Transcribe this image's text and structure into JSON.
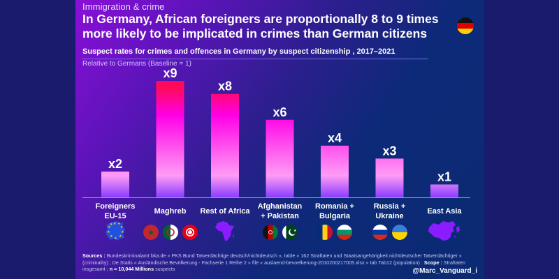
{
  "header": {
    "category": "Immigration & crime",
    "title": "In Germany, African foreigners are proportionally 8 to 9 times more likely to be implicated in crimes than German citizens",
    "flag_icon": "germany-flag-icon",
    "subtitle": "Suspect rates for crimes and offences in Germany by suspect citizenship , 2017–2021",
    "note": "Relative to Germans (Baseline = 1)"
  },
  "chart_data": {
    "type": "bar",
    "title": "Suspect rates for crimes and offences in Germany by suspect citizenship , 2017–2021",
    "subtitle": "Relative to Germans (Baseline = 1)",
    "xlabel": "",
    "ylabel": "",
    "ylim": [
      0,
      9.6
    ],
    "grid": false,
    "categories": [
      "Foreigners EU-15",
      "Maghreb",
      "Rest of Africa",
      "Afghanistan + Pakistan",
      "Romania + Bulgaria",
      "Russia + Ukraine",
      "East Asia"
    ],
    "category_lines": [
      [
        "Foreigners",
        "EU-15"
      ],
      [
        "Maghreb"
      ],
      [
        "Rest of Africa"
      ],
      [
        "Afghanistan",
        "+ Pakistan"
      ],
      [
        "Romania +",
        "Bulgaria"
      ],
      [
        "Russia +",
        "Ukraine"
      ],
      [
        "East Asia"
      ]
    ],
    "values": [
      2,
      9,
      8,
      6,
      4,
      3,
      1
    ],
    "data_labels": [
      "x2",
      "x9",
      "x8",
      "x6",
      "x4",
      "x3",
      "x1"
    ],
    "icons": [
      [
        "eu-map-icon"
      ],
      [
        "morocco-flag-icon",
        "algeria-flag-icon",
        "tunisia-flag-icon"
      ],
      [
        "africa-map-icon"
      ],
      [
        "afghanistan-flag-icon",
        "pakistan-flag-icon"
      ],
      [
        "romania-flag-icon",
        "bulgaria-flag-icon"
      ],
      [
        "russia-flag-icon",
        "ukraine-flag-icon"
      ],
      [
        "east-asia-map-icon"
      ]
    ],
    "colors": {
      "bar_top": "#ff0a5a",
      "bar_upper": "#ff00e6",
      "bar_mid": "#ff9cf5",
      "bar_bottom": "#8a3cff",
      "baseline": "#8fa0e6"
    }
  },
  "footer": {
    "sources_label": "Sources :",
    "sources_text": " Bundeskriminalamt bka.de « PKS Bund Tatverdächtige deutsch/nichtdeutsch », table « 162 Straftaten und Staatsangehörigkeit nichtdeutscher Tatverdächtiger » (criminality) ; De Statis « Ausländische Bevölkerung - Fachserie 1 Reihe 2 » file « auslaend-bevoelkerung-2010200217005.xlsx » tab Tab12 (population) : ",
    "scope_label": "Scope :",
    "scope_text": " Straftaten insgesamt ; ",
    "n_label": "n = 10,044 Millions",
    "n_suffix": " suspects",
    "handle": "@Marc_Vanguard_i"
  }
}
